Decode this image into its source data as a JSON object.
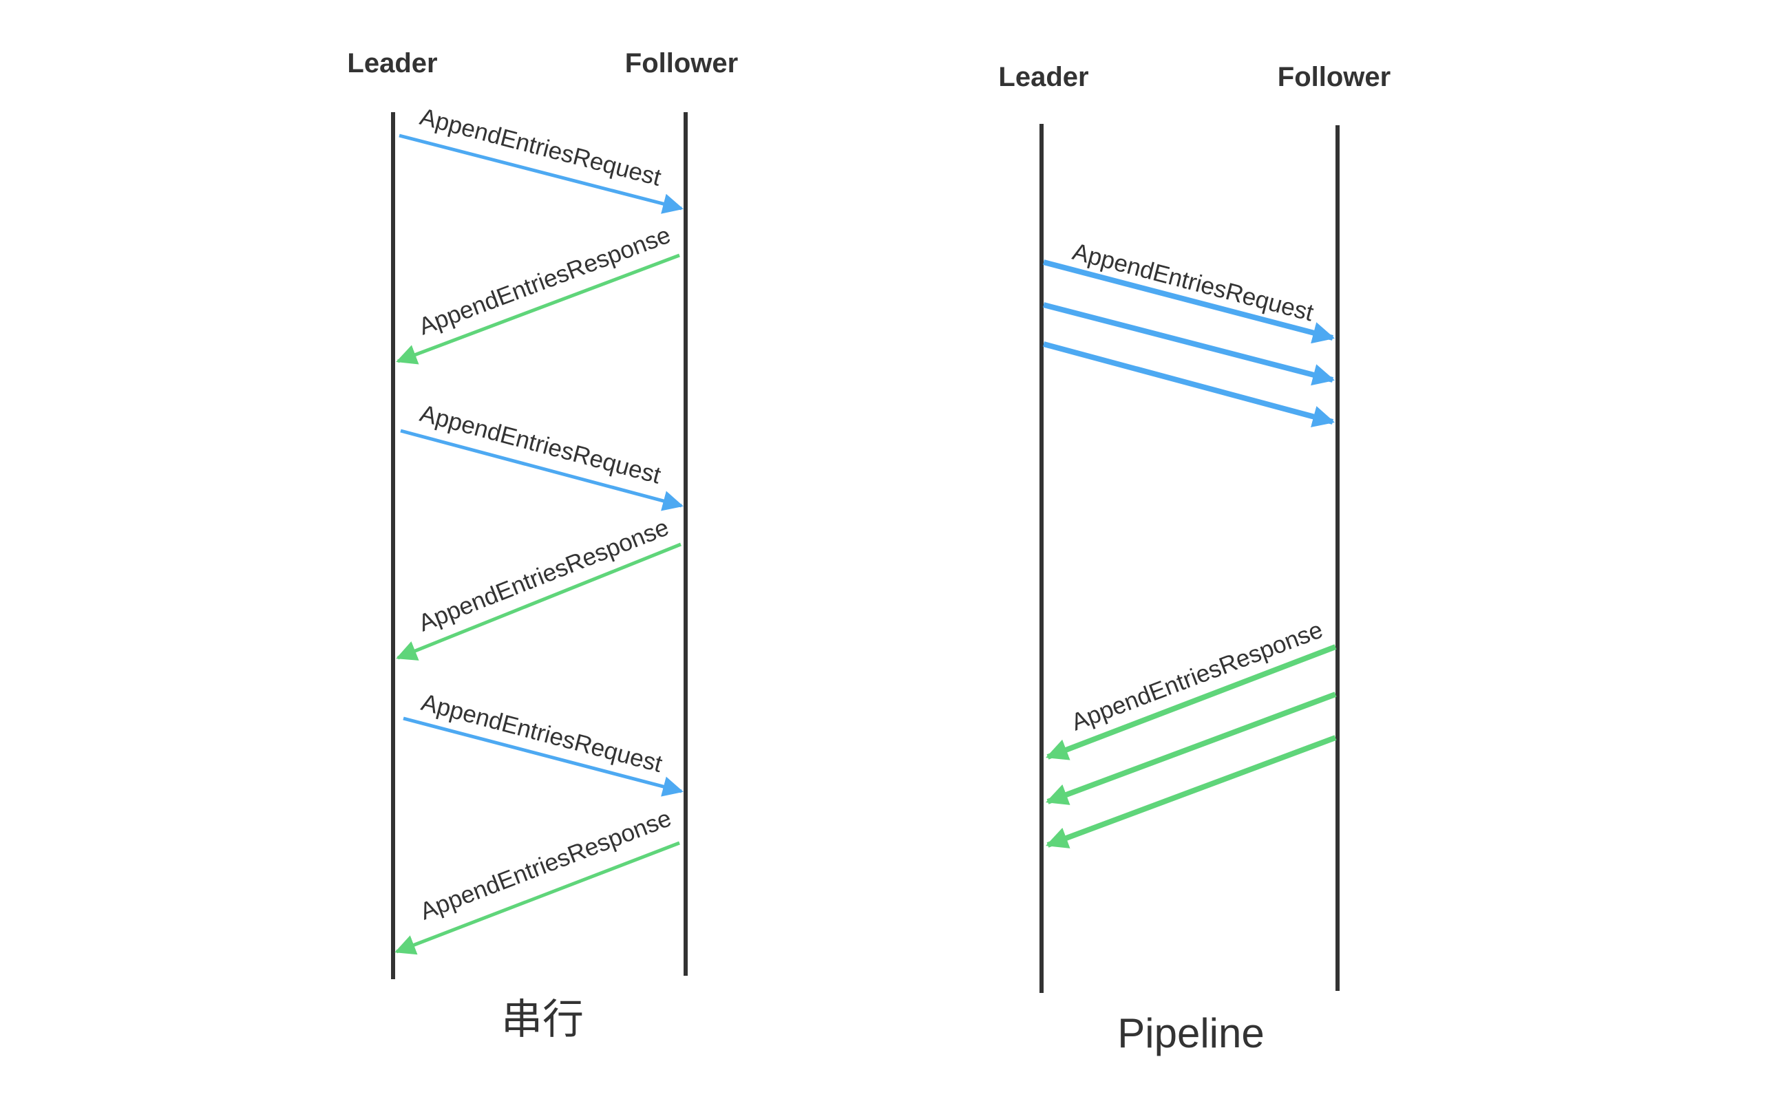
{
  "colors": {
    "lifeline": "#333333",
    "request": "#4da9f2",
    "response": "#5fd57a",
    "text": "#333333",
    "background": "#ffffff"
  },
  "serial": {
    "leader_label": "Leader",
    "follower_label": "Follower",
    "caption": "串行",
    "messages": [
      {
        "kind": "request",
        "label": "AppendEntriesRequest"
      },
      {
        "kind": "response",
        "label": "AppendEntriesResponse"
      },
      {
        "kind": "request",
        "label": "AppendEntriesRequest"
      },
      {
        "kind": "response",
        "label": "AppendEntriesResponse"
      },
      {
        "kind": "request",
        "label": "AppendEntriesRequest"
      },
      {
        "kind": "response",
        "label": "AppendEntriesResponse"
      }
    ]
  },
  "pipeline": {
    "leader_label": "Leader",
    "follower_label": "Follower",
    "caption": "Pipeline",
    "request_label": "AppendEntriesRequest",
    "response_label": "AppendEntriesResponse",
    "request_count": 3,
    "response_count": 3
  }
}
